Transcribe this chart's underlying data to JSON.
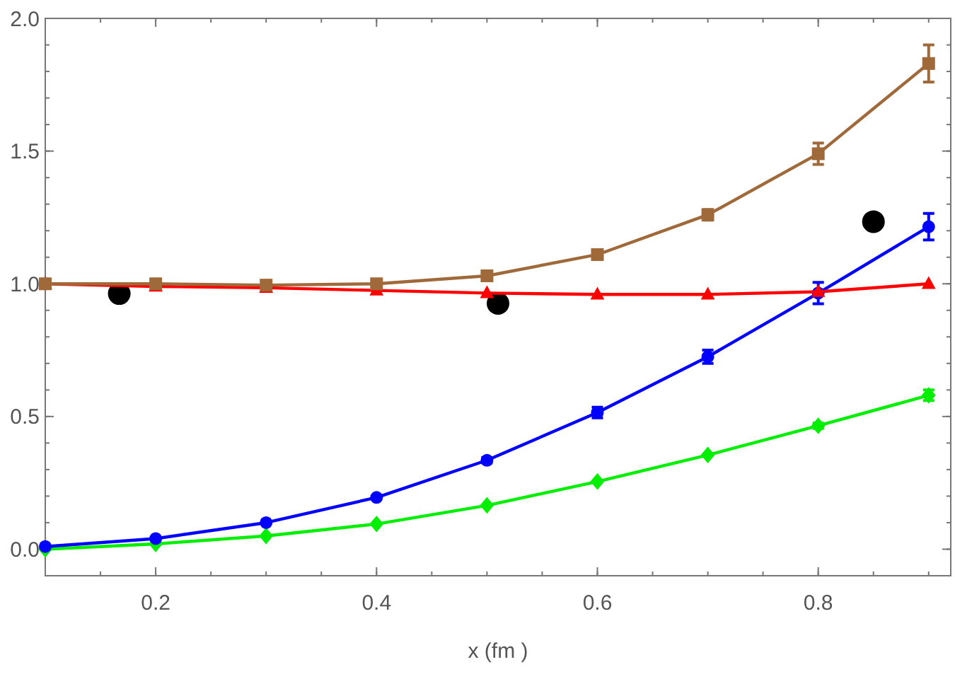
{
  "chart_data": {
    "type": "line",
    "xlabel": "x (fm )",
    "xlim": [
      0.1,
      0.92
    ],
    "ylim": [
      -0.1,
      2.0
    ],
    "xticks": [
      0.2,
      0.4,
      0.6,
      0.8
    ],
    "yticks": [
      {
        "value": 0,
        "label": "0.0"
      },
      0.5,
      {
        "value": 1,
        "label": "1.0"
      },
      1.5,
      {
        "value": 2,
        "label": "2.0"
      }
    ],
    "x": [
      0.1,
      0.2,
      0.3,
      0.4,
      0.5,
      0.6,
      0.7,
      0.8,
      0.9
    ],
    "grid": false,
    "series": [
      {
        "color": "#a0693a",
        "marker": "square",
        "values": [
          1.0,
          1.0,
          0.995,
          1.0,
          1.03,
          1.11,
          1.26,
          1.49,
          1.83
        ],
        "errors": [
          null,
          null,
          null,
          null,
          null,
          0.01,
          0.02,
          0.04,
          0.07
        ]
      },
      {
        "color": "#ff0000",
        "marker": "triangle",
        "values": [
          1.0,
          0.99,
          0.985,
          0.975,
          0.965,
          0.96,
          0.96,
          0.97,
          1.0
        ]
      },
      {
        "color": "#0000ff",
        "marker": "circle",
        "values": [
          0.01,
          0.04,
          0.1,
          0.195,
          0.335,
          0.515,
          0.725,
          0.965,
          1.215
        ],
        "errors": [
          null,
          null,
          null,
          null,
          0.01,
          0.02,
          0.025,
          0.04,
          0.05
        ]
      },
      {
        "color": "#00ee00",
        "marker": "diamond",
        "values": [
          0.0,
          0.02,
          0.05,
          0.095,
          0.165,
          0.255,
          0.355,
          0.465,
          0.58
        ],
        "errors": [
          null,
          null,
          null,
          null,
          null,
          null,
          null,
          0.01,
          0.02
        ]
      },
      {
        "type": "scatter",
        "color": "#000000",
        "marker": "circle",
        "x": [
          0.167,
          0.51,
          0.85
        ],
        "values": [
          0.963,
          0.926,
          1.234
        ]
      }
    ]
  }
}
